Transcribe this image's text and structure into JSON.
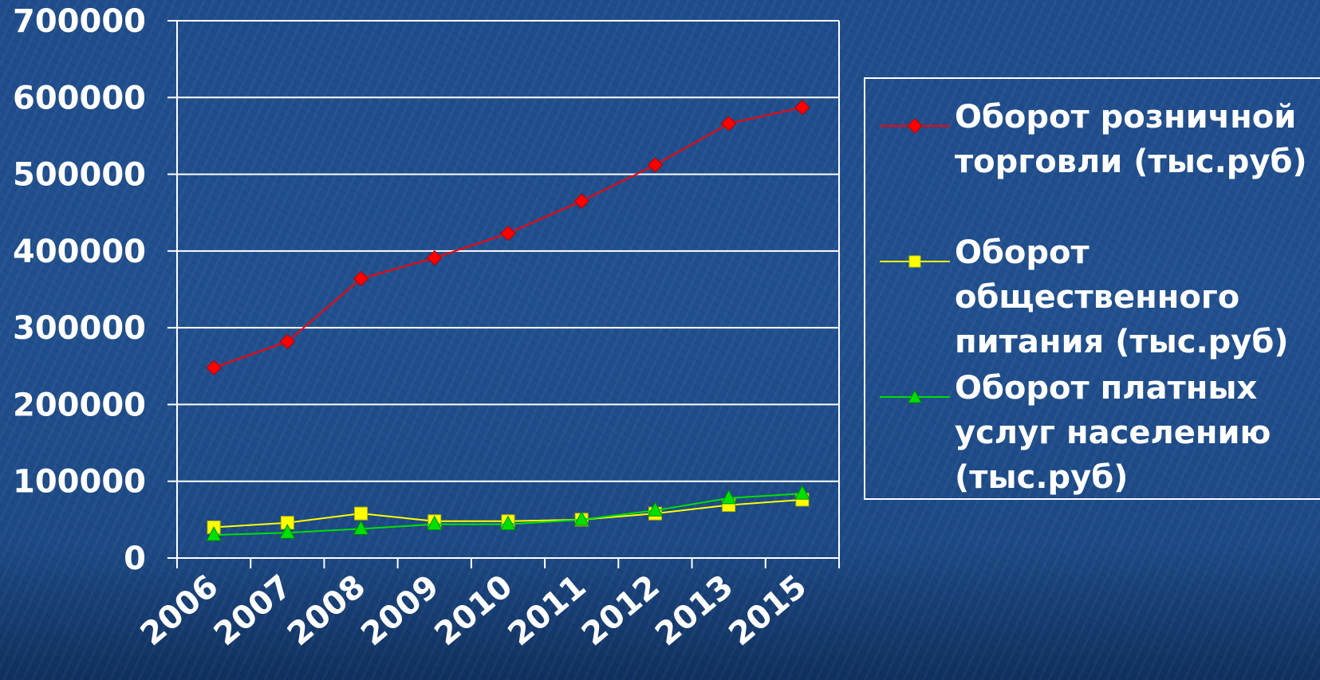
{
  "chart_data": {
    "type": "line",
    "title": "",
    "xlabel": "",
    "ylabel": "",
    "categories": [
      "2006",
      "2007",
      "2008",
      "2009",
      "2010",
      "2011",
      "2012",
      "2013",
      "2015"
    ],
    "ylim": [
      0,
      700000
    ],
    "yticks": [
      "0",
      "100000",
      "200000",
      "300000",
      "400000",
      "500000",
      "600000",
      "700000"
    ],
    "grid": true,
    "legend_position": "right",
    "series": [
      {
        "name": "Оборот розничной торговли (тыс.руб)",
        "color": "#ff0000",
        "marker": "diamond",
        "values": [
          248000,
          282000,
          364000,
          391000,
          423000,
          465000,
          512000,
          566000,
          587000
        ]
      },
      {
        "name": "Оборот общественного питания (тыс.руб)",
        "color": "#ffff00",
        "marker": "square",
        "values": [
          40000,
          46000,
          58000,
          48000,
          48000,
          50000,
          58000,
          69000,
          76000
        ]
      },
      {
        "name": "Оборот платных услуг населению (тыс.руб)",
        "color": "#00e000",
        "marker": "triangle",
        "values": [
          30000,
          33000,
          38000,
          44000,
          44000,
          50000,
          62000,
          78000,
          84000
        ]
      }
    ]
  }
}
